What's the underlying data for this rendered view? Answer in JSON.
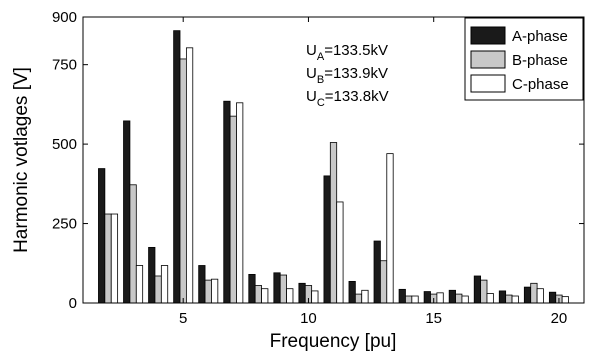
{
  "chart_data": {
    "type": "bar",
    "xlabel": "Frequency [pu]",
    "ylabel": "Harmonic votlages [V]",
    "xlim": [
      1,
      21
    ],
    "ylim": [
      0,
      900
    ],
    "xticks": [
      5,
      10,
      15,
      20
    ],
    "yticks": [
      0,
      250,
      500,
      750,
      900
    ],
    "grid": false,
    "legend_position": "top-right",
    "x": [
      2,
      3,
      4,
      5,
      6,
      7,
      8,
      9,
      10,
      11,
      12,
      13,
      14,
      15,
      16,
      17,
      18,
      19,
      20
    ],
    "series": [
      {
        "name": "A-phase",
        "color": "#1a1a1a",
        "values": [
          423,
          573,
          175,
          857,
          118,
          635,
          90,
          95,
          62,
          400,
          68,
          195,
          43,
          36,
          40,
          85,
          38,
          50,
          34
        ]
      },
      {
        "name": "B-phase",
        "color": "#c8c8c8",
        "values": [
          280,
          372,
          85,
          768,
          72,
          588,
          55,
          88,
          55,
          505,
          28,
          133,
          22,
          28,
          28,
          72,
          25,
          62,
          25
        ]
      },
      {
        "name": "C-phase",
        "color": "#ffffff",
        "values": [
          280,
          118,
          118,
          803,
          75,
          630,
          45,
          45,
          38,
          318,
          40,
          470,
          22,
          32,
          22,
          30,
          22,
          45,
          20
        ]
      }
    ],
    "annotations": [
      {
        "sub": "A",
        "text": "=133.5kV"
      },
      {
        "sub": "B",
        "text": "=133.9kV"
      },
      {
        "sub": "C",
        "text": "=133.8kV"
      }
    ],
    "annotation_prefix": "U"
  }
}
